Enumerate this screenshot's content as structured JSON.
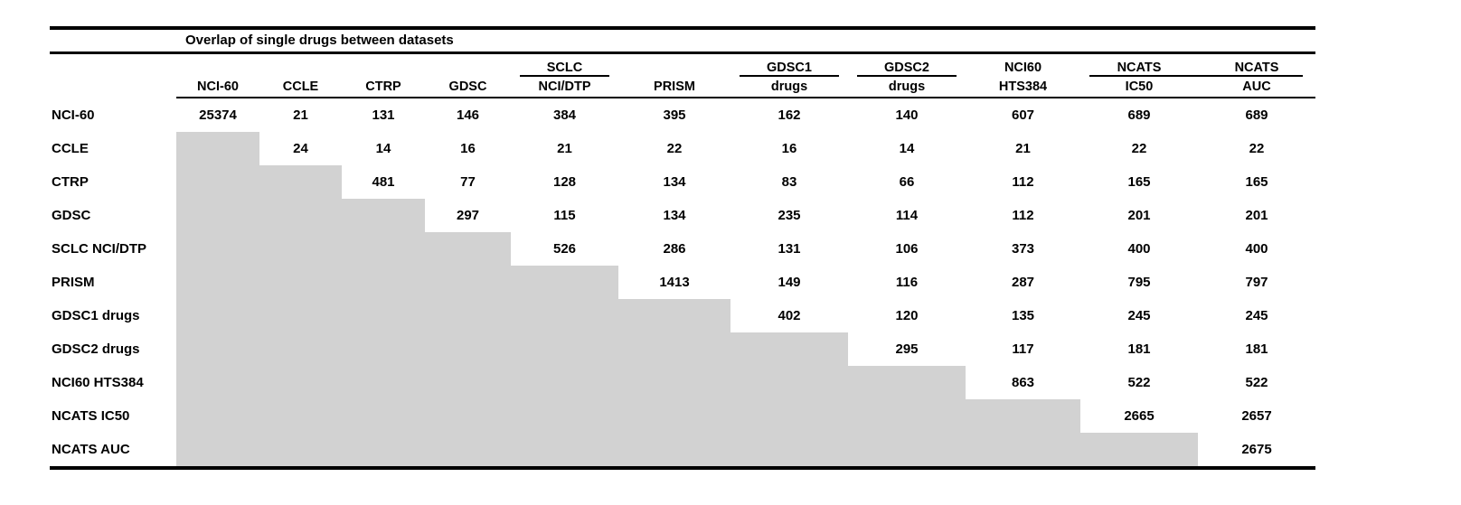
{
  "title": "Overlap of single drugs between datasets",
  "columns": [
    {
      "top": "",
      "bottom": "NCI-60"
    },
    {
      "top": "",
      "bottom": "CCLE"
    },
    {
      "top": "",
      "bottom": "CTRP"
    },
    {
      "top": "",
      "bottom": "GDSC"
    },
    {
      "top": "SCLC",
      "bottom": "NCI/DTP"
    },
    {
      "top": "",
      "bottom": "PRISM"
    },
    {
      "top": "GDSC1",
      "bottom": "drugs"
    },
    {
      "top": "GDSC2",
      "bottom": "drugs"
    },
    {
      "top": "NCI60",
      "bottom": "HTS384"
    },
    {
      "top": "NCATS",
      "bottom": "IC50"
    },
    {
      "top": "NCATS",
      "bottom": "AUC"
    }
  ],
  "rows": [
    {
      "label": "NCI-60",
      "values": [
        25374,
        21,
        131,
        146,
        384,
        395,
        162,
        140,
        607,
        689,
        689
      ]
    },
    {
      "label": "CCLE",
      "values": [
        null,
        24,
        14,
        16,
        21,
        22,
        16,
        14,
        21,
        22,
        22
      ]
    },
    {
      "label": "CTRP",
      "values": [
        null,
        null,
        481,
        77,
        128,
        134,
        83,
        66,
        112,
        165,
        165
      ]
    },
    {
      "label": "GDSC",
      "values": [
        null,
        null,
        null,
        297,
        115,
        134,
        235,
        114,
        112,
        201,
        201
      ]
    },
    {
      "label": "SCLC NCI/DTP",
      "values": [
        null,
        null,
        null,
        null,
        526,
        286,
        131,
        106,
        373,
        400,
        400
      ]
    },
    {
      "label": "PRISM",
      "values": [
        null,
        null,
        null,
        null,
        null,
        1413,
        149,
        116,
        287,
        795,
        797
      ]
    },
    {
      "label": "GDSC1 drugs",
      "values": [
        null,
        null,
        null,
        null,
        null,
        null,
        402,
        120,
        135,
        245,
        245
      ]
    },
    {
      "label": "GDSC2 drugs",
      "values": [
        null,
        null,
        null,
        null,
        null,
        null,
        null,
        295,
        117,
        181,
        181
      ]
    },
    {
      "label": "NCI60 HTS384",
      "values": [
        null,
        null,
        null,
        null,
        null,
        null,
        null,
        null,
        863,
        522,
        522
      ]
    },
    {
      "label": "NCATS IC50",
      "values": [
        null,
        null,
        null,
        null,
        null,
        null,
        null,
        null,
        null,
        2665,
        2657
      ]
    },
    {
      "label": "NCATS AUC",
      "values": [
        null,
        null,
        null,
        null,
        null,
        null,
        null,
        null,
        null,
        null,
        2675
      ]
    }
  ],
  "colors": {
    "masked_cell_gray": "#d2d2d2",
    "line": "#000000",
    "text": "#000000",
    "background": "#ffffff"
  },
  "chart_data": {
    "type": "table",
    "title": "Overlap of single drugs between datasets",
    "row_labels": [
      "NCI-60",
      "CCLE",
      "CTRP",
      "GDSC",
      "SCLC NCI/DTP",
      "PRISM",
      "GDSC1 drugs",
      "GDSC2 drugs",
      "NCI60 HTS384",
      "NCATS IC50",
      "NCATS AUC"
    ],
    "column_labels": [
      "NCI-60",
      "CCLE",
      "CTRP",
      "GDSC",
      "SCLC NCI/DTP",
      "PRISM",
      "GDSC1 drugs",
      "GDSC2 drugs",
      "NCI60 HTS384",
      "NCATS IC50",
      "NCATS AUC"
    ],
    "matrix": [
      [
        25374,
        21,
        131,
        146,
        384,
        395,
        162,
        140,
        607,
        689,
        689
      ],
      [
        null,
        24,
        14,
        16,
        21,
        22,
        16,
        14,
        21,
        22,
        22
      ],
      [
        null,
        null,
        481,
        77,
        128,
        134,
        83,
        66,
        112,
        165,
        165
      ],
      [
        null,
        null,
        null,
        297,
        115,
        134,
        235,
        114,
        112,
        201,
        201
      ],
      [
        null,
        null,
        null,
        null,
        526,
        286,
        131,
        106,
        373,
        400,
        400
      ],
      [
        null,
        null,
        null,
        null,
        null,
        1413,
        149,
        116,
        287,
        795,
        797
      ],
      [
        null,
        null,
        null,
        null,
        null,
        null,
        402,
        120,
        135,
        245,
        245
      ],
      [
        null,
        null,
        null,
        null,
        null,
        null,
        null,
        295,
        117,
        181,
        181
      ],
      [
        null,
        null,
        null,
        null,
        null,
        null,
        null,
        null,
        863,
        522,
        522
      ],
      [
        null,
        null,
        null,
        null,
        null,
        null,
        null,
        null,
        null,
        2665,
        2657
      ],
      [
        null,
        null,
        null,
        null,
        null,
        null,
        null,
        null,
        null,
        null,
        2675
      ]
    ],
    "note_layout": "upper-triangular matrix; lower-triangle cells are masked with gray fill"
  }
}
